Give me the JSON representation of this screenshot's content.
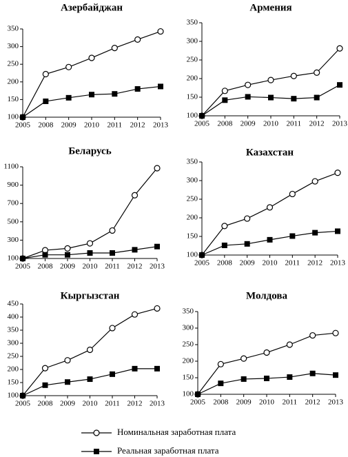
{
  "chart_data": [
    {
      "type": "line",
      "title": "Азербайджан",
      "categories": [
        "2005",
        "2008",
        "2009",
        "2010",
        "2011",
        "2012",
        "2013"
      ],
      "ylim": [
        100,
        350
      ],
      "yticks": [
        100,
        150,
        200,
        250,
        300,
        350
      ],
      "series": [
        {
          "color": "#000000",
          "marker": "open-circle",
          "values": [
            100,
            222,
            242,
            268,
            296,
            320,
            343
          ]
        },
        {
          "color": "#000000",
          "marker": "filled-square",
          "values": [
            100,
            145,
            155,
            164,
            166,
            180,
            187
          ]
        }
      ]
    },
    {
      "type": "line",
      "title": "Армения",
      "categories": [
        "2005",
        "2008",
        "2009",
        "2010",
        "2011",
        "2012",
        "2013"
      ],
      "ylim": [
        100,
        350
      ],
      "yticks": [
        100,
        150,
        200,
        250,
        300,
        350
      ],
      "series": [
        {
          "color": "#000000",
          "marker": "open-circle",
          "values": [
            100,
            167,
            183,
            196,
            207,
            216,
            281
          ]
        },
        {
          "color": "#000000",
          "marker": "filled-square",
          "values": [
            100,
            142,
            151,
            149,
            146,
            149,
            183
          ]
        }
      ]
    },
    {
      "type": "line",
      "title": "Беларусь",
      "categories": [
        "2005",
        "2008",
        "2009",
        "2010",
        "2011",
        "2012",
        "2013"
      ],
      "ylim": [
        100,
        1100
      ],
      "yticks": [
        100,
        300,
        500,
        700,
        900,
        1100
      ],
      "series": [
        {
          "color": "#000000",
          "marker": "open-circle",
          "values": [
            100,
            190,
            210,
            265,
            405,
            790,
            1085
          ]
        },
        {
          "color": "#000000",
          "marker": "filled-square",
          "values": [
            100,
            140,
            140,
            160,
            160,
            195,
            230
          ]
        }
      ]
    },
    {
      "type": "line",
      "title": "Казахстан",
      "categories": [
        "2005",
        "2008",
        "2009",
        "2010",
        "2011",
        "2012",
        "2013"
      ],
      "ylim": [
        100,
        350
      ],
      "yticks": [
        100,
        150,
        200,
        250,
        300,
        350
      ],
      "series": [
        {
          "color": "#000000",
          "marker": "open-circle",
          "values": [
            100,
            178,
            198,
            228,
            264,
            298,
            321
          ]
        },
        {
          "color": "#000000",
          "marker": "filled-square",
          "values": [
            100,
            126,
            130,
            141,
            151,
            160,
            164
          ]
        }
      ]
    },
    {
      "type": "line",
      "title": "Кыргызстан",
      "categories": [
        "2005",
        "2008",
        "2009",
        "2010",
        "2011",
        "2012",
        "2013"
      ],
      "ylim": [
        100,
        450
      ],
      "yticks": [
        100,
        150,
        200,
        250,
        300,
        350,
        400,
        450
      ],
      "series": [
        {
          "color": "#000000",
          "marker": "open-circle",
          "values": [
            100,
            205,
            235,
            275,
            358,
            410,
            433
          ]
        },
        {
          "color": "#000000",
          "marker": "filled-square",
          "values": [
            100,
            140,
            152,
            163,
            182,
            203,
            203
          ]
        }
      ]
    },
    {
      "type": "line",
      "title": "Молдова",
      "categories": [
        "2005",
        "2008",
        "2009",
        "2010",
        "2011",
        "2012",
        "2013"
      ],
      "ylim": [
        100,
        350
      ],
      "yticks": [
        100,
        150,
        200,
        250,
        300,
        350
      ],
      "series": [
        {
          "color": "#000000",
          "marker": "open-circle",
          "values": [
            100,
            191,
            208,
            226,
            250,
            278,
            285
          ]
        },
        {
          "color": "#000000",
          "marker": "filled-square",
          "values": [
            100,
            133,
            146,
            148,
            152,
            163,
            158
          ]
        }
      ]
    }
  ],
  "legend": [
    "Номинальная заработная плата",
    "Реальная заработная плата"
  ]
}
